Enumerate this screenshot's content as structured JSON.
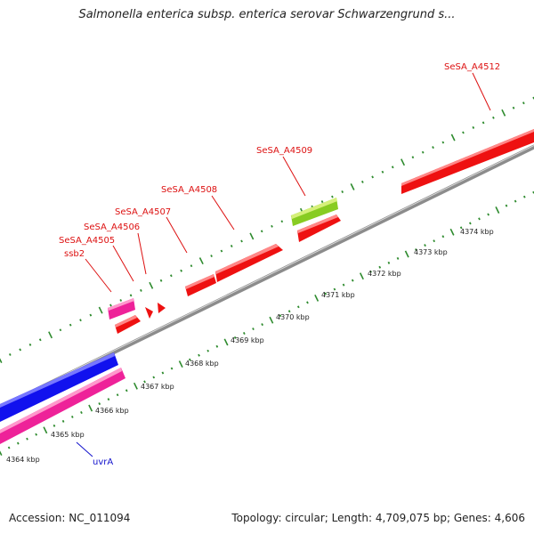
{
  "header": {
    "title": "Salmonella enterica subsp. enterica serovar Schwarzengrund s..."
  },
  "footer": {
    "accession": "Accession: NC_011094",
    "summary": "Topology: circular; Length: 4,709,075 bp; Genes: 4,606"
  },
  "colors": {
    "backbone": "#8c8c8c",
    "tick": "#2e8b2e",
    "gene_label": "#dd1111",
    "gene_red": "#ee1111",
    "gene_magenta": "#ee2299",
    "gene_blue": "#1111ee",
    "gene_green": "#88cc22",
    "blue_label": "#1111cc"
  },
  "map": {
    "scale_labels": [
      "4364 kbp",
      "4365 kbp",
      "4366 kbp",
      "4367 kbp",
      "4368 kbp",
      "4369 kbp",
      "4370 kbp",
      "4371 kbp",
      "4372 kbp",
      "4373 kbp",
      "4374 kbp"
    ],
    "gene_labels": [
      "SeSA_A4512",
      "SeSA_A4509",
      "SeSA_A4508",
      "SeSA_A4507",
      "SeSA_A4506",
      "SeSA_A4505",
      "ssb2",
      "uvrA"
    ]
  }
}
